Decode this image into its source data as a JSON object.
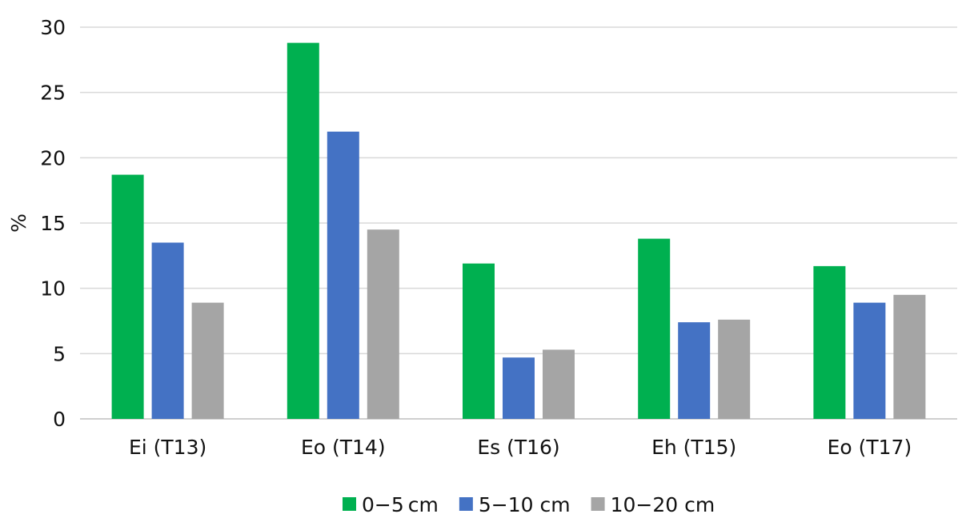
{
  "chart_data": {
    "type": "bar",
    "title": "",
    "xlabel": "",
    "ylabel": "%",
    "ylim": [
      0,
      30
    ],
    "yticks": [
      0,
      5,
      10,
      15,
      20,
      25,
      30
    ],
    "grid": true,
    "legend_position": "bottom",
    "categories": [
      "Ei (T13)",
      "Eo (T14)",
      "Es (T16)",
      "Eh (T15)",
      "Eo (T17)"
    ],
    "series": [
      {
        "name": "0−5 cm",
        "color": "#00b050",
        "values": [
          18.7,
          28.8,
          11.9,
          13.8,
          11.7
        ]
      },
      {
        "name": "5−10 cm",
        "color": "#4472c4",
        "values": [
          13.5,
          22.0,
          4.7,
          7.4,
          8.9
        ]
      },
      {
        "name": "10−20 cm",
        "color": "#a5a5a5",
        "values": [
          8.9,
          14.5,
          5.3,
          7.6,
          9.5
        ]
      }
    ]
  }
}
